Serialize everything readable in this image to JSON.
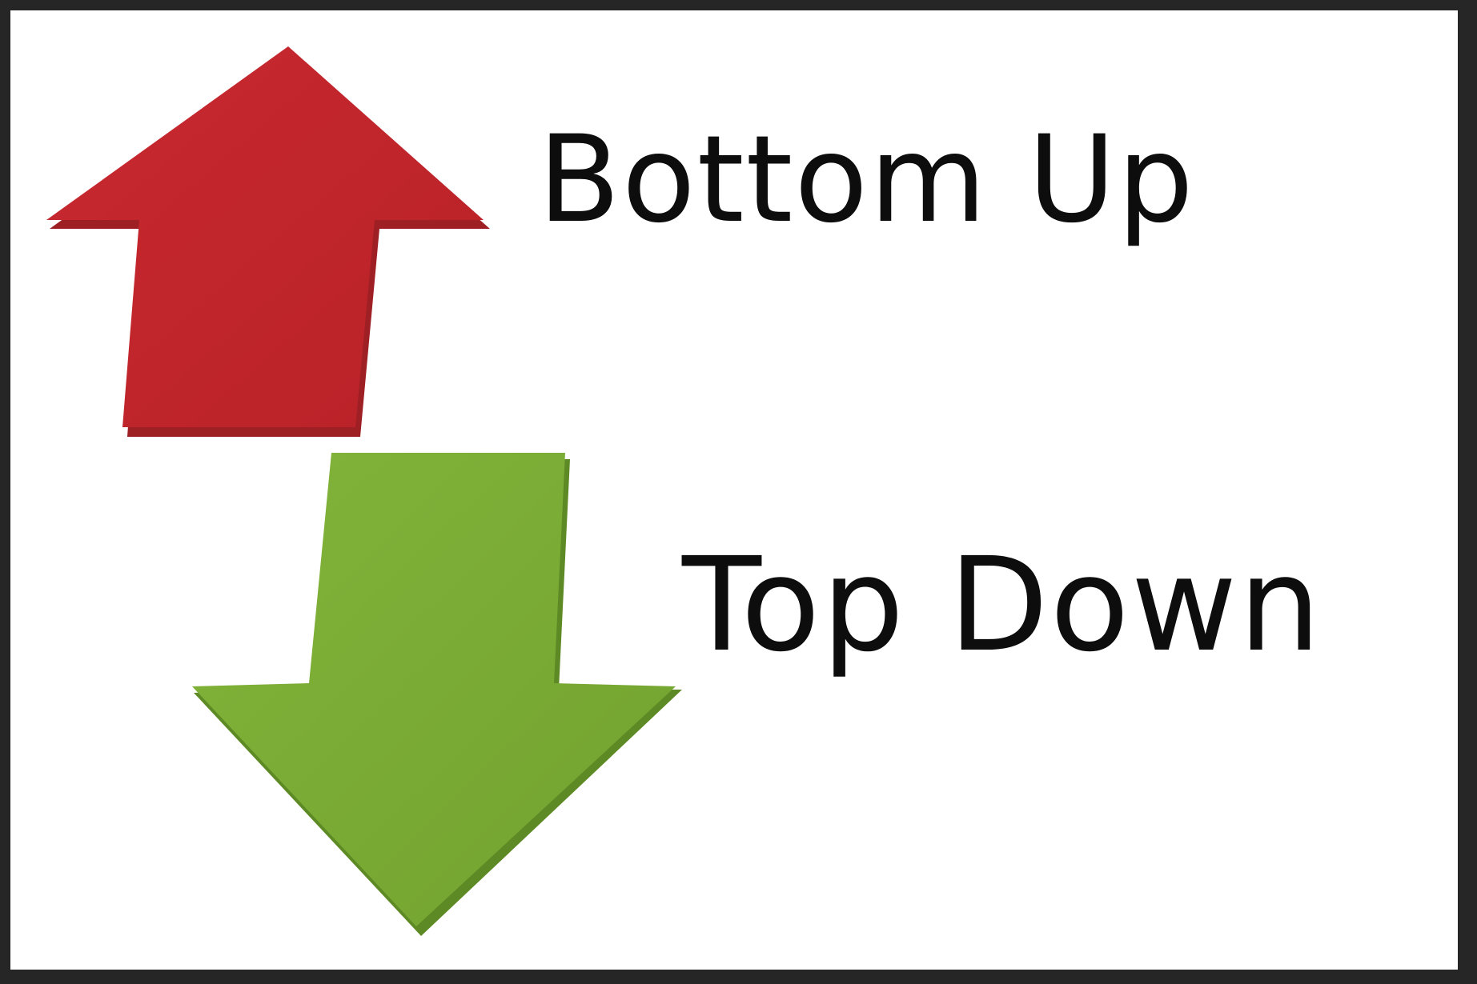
{
  "labels": {
    "bottom_up": "Bottom Up",
    "top_down": "Top Down"
  },
  "icons": {
    "up": "up-arrow-icon",
    "down": "down-arrow-icon"
  },
  "colors": {
    "up_arrow": "#c1272d",
    "up_arrow_shade": "#9e1f24",
    "down_arrow": "#7aab35",
    "down_arrow_shade": "#5e8a25",
    "text": "#0d0d0d",
    "frame": "#262626"
  }
}
